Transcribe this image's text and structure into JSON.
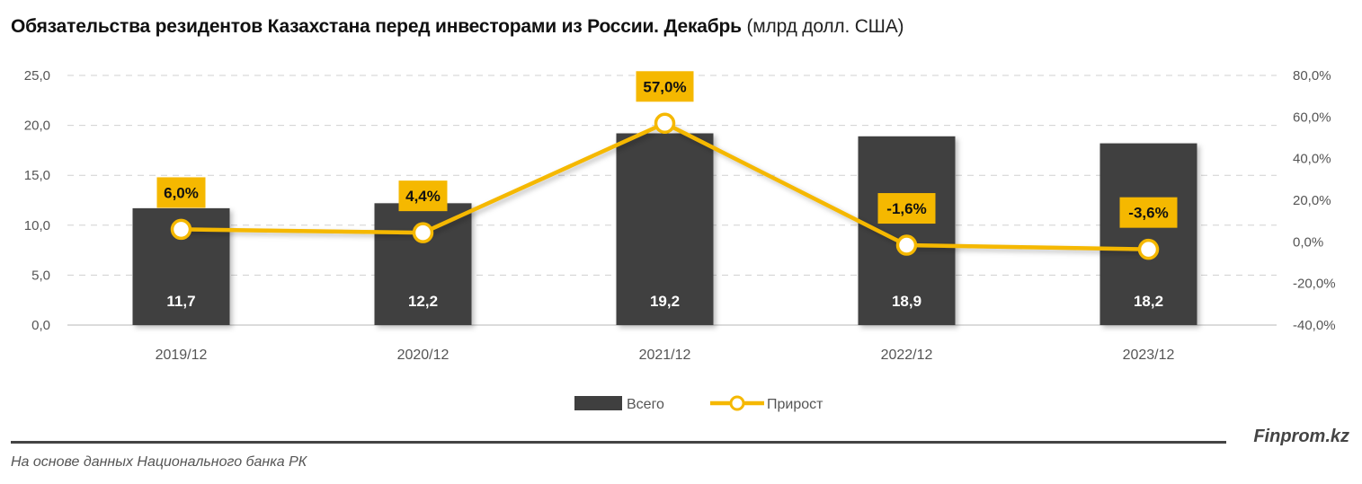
{
  "header": {
    "title_bold": "Обязательства резидентов Казахстана перед инвесторами из России. Декабрь",
    "title_unit": "(млрд долл. США)"
  },
  "footer": {
    "source": "На основе данных Национального банка РК",
    "brand": "Finprom.kz"
  },
  "colors": {
    "bar": "#3f3f3f",
    "line": "#f5b800",
    "label_bg": "#f5b800",
    "grid": "#d0d0d0",
    "text": "#555555"
  },
  "chart_data": {
    "type": "bar+line",
    "title": "Обязательства резидентов Казахстана перед инвесторами из России. Декабрь (млрд долл. США)",
    "categories": [
      "2019/12",
      "2020/12",
      "2021/12",
      "2022/12",
      "2023/12"
    ],
    "series": [
      {
        "name": "Всего",
        "type": "bar",
        "axis": "left",
        "values": [
          11.7,
          12.2,
          19.2,
          18.9,
          18.2
        ],
        "labels": [
          "11,7",
          "12,2",
          "19,2",
          "18,9",
          "18,2"
        ]
      },
      {
        "name": "Прирост",
        "type": "line",
        "axis": "right",
        "values": [
          6.0,
          4.4,
          57.0,
          -1.6,
          -3.6
        ],
        "labels": [
          "6,0%",
          "4,4%",
          "57,0%",
          "-1,6%",
          "-3,6%"
        ]
      }
    ],
    "left_axis": {
      "ylim": [
        0,
        25
      ],
      "ticks": [
        "0,0",
        "5,0",
        "10,0",
        "15,0",
        "20,0",
        "25,0"
      ]
    },
    "right_axis": {
      "ylim": [
        -40,
        80
      ],
      "ticks": [
        "-40,0%",
        "-20,0%",
        "0,0%",
        "20,0%",
        "40,0%",
        "60,0%",
        "80,0%"
      ]
    },
    "grid": true,
    "legend": {
      "position": "bottom",
      "entries": [
        "Всего",
        "Прирост"
      ]
    },
    "xlabel": "",
    "ylabel": ""
  }
}
